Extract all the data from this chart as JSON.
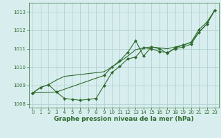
{
  "line1_x": [
    0,
    1,
    2,
    3,
    4,
    5,
    6,
    7,
    8,
    9,
    10,
    11,
    12,
    13,
    14,
    15,
    16,
    17,
    18,
    19,
    20,
    21,
    22,
    23
  ],
  "line1_y": [
    1008.6,
    1008.9,
    1009.05,
    1009.3,
    1009.5,
    1009.55,
    1009.6,
    1009.65,
    1009.7,
    1009.75,
    1010.0,
    1010.3,
    1010.6,
    1010.95,
    1011.05,
    1011.1,
    1011.05,
    1011.0,
    1011.1,
    1011.2,
    1011.35,
    1011.9,
    1012.35,
    1013.1
  ],
  "line2_x": [
    0,
    1,
    2,
    3,
    4,
    5,
    6,
    7,
    8,
    9,
    10,
    11,
    12,
    13,
    14,
    15,
    16,
    17,
    18,
    19,
    20,
    21,
    22,
    23
  ],
  "line2_y": [
    1008.6,
    1008.9,
    1009.05,
    1008.65,
    1008.3,
    1008.25,
    1008.2,
    1008.25,
    1008.3,
    1009.0,
    1009.7,
    1010.05,
    1010.45,
    1010.55,
    1011.05,
    1011.0,
    1010.85,
    1010.8,
    1011.0,
    1011.1,
    1011.25,
    1011.9,
    1012.35,
    1013.1
  ],
  "line3_x": [
    0,
    3,
    9,
    10,
    11,
    12,
    13,
    14,
    15,
    16,
    17,
    18,
    19,
    20,
    21,
    22,
    23
  ],
  "line3_y": [
    1008.6,
    1008.65,
    1009.55,
    1010.0,
    1010.35,
    1010.8,
    1011.45,
    1010.6,
    1011.1,
    1011.0,
    1010.75,
    1011.05,
    1011.2,
    1011.35,
    1012.05,
    1012.45,
    1013.1
  ],
  "line_color": "#2d6a2d",
  "marker_color": "#2d6a2d",
  "bg_color": "#d8eeee",
  "grid_color": "#aacccc",
  "xlabel": "Graphe pression niveau de la mer (hPa)",
  "xlim": [
    -0.5,
    23.5
  ],
  "ylim": [
    1007.8,
    1013.5
  ],
  "yticks": [
    1008,
    1009,
    1010,
    1011,
    1012,
    1013
  ],
  "xticks": [
    0,
    1,
    2,
    3,
    4,
    5,
    6,
    7,
    8,
    9,
    10,
    11,
    12,
    13,
    14,
    15,
    16,
    17,
    18,
    19,
    20,
    21,
    22,
    23
  ],
  "tick_fontsize": 5.0,
  "xlabel_fontsize": 6.5,
  "line_width": 0.8,
  "marker_size": 2.2
}
